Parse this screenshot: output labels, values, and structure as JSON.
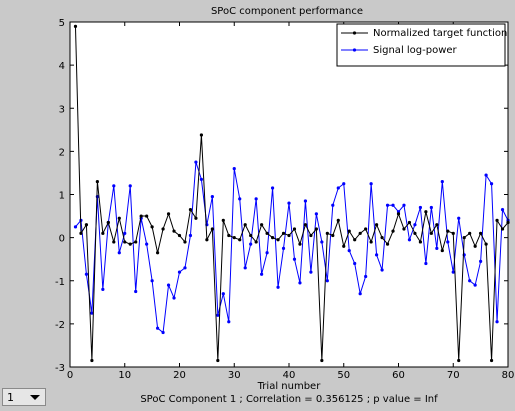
{
  "chart_data": {
    "type": "line",
    "title": "SPoC component performance",
    "xlabel": "Trial number",
    "caption": "SPoC Component 1 ; Correlation = 0.356125 ; p value = Inf",
    "xlim": [
      0,
      80
    ],
    "ylim": [
      -3,
      5
    ],
    "xticks": [
      0,
      10,
      20,
      30,
      40,
      50,
      60,
      70,
      80
    ],
    "yticks": [
      5,
      4,
      3,
      2,
      1,
      0,
      -1,
      -2,
      -3
    ],
    "legend_position": "top-right",
    "series": [
      {
        "name": "Normalized target function",
        "color": "#000000",
        "x": [
          1,
          2,
          3,
          4,
          5,
          6,
          7,
          8,
          9,
          10,
          11,
          12,
          13,
          14,
          15,
          16,
          17,
          18,
          19,
          20,
          21,
          22,
          23,
          24,
          25,
          26,
          27,
          28,
          29,
          30,
          31,
          32,
          33,
          34,
          35,
          36,
          37,
          38,
          39,
          40,
          41,
          42,
          43,
          44,
          45,
          46,
          47,
          48,
          49,
          50,
          51,
          52,
          53,
          54,
          55,
          56,
          57,
          58,
          59,
          60,
          61,
          62,
          63,
          64,
          65,
          66,
          67,
          68,
          69,
          70,
          71,
          72,
          73,
          74,
          75,
          76,
          77,
          78,
          79,
          80
        ],
        "values": [
          4.9,
          0.1,
          0.3,
          -2.85,
          1.3,
          0.1,
          0.35,
          -0.1,
          0.45,
          -0.1,
          -0.15,
          -0.1,
          0.5,
          0.5,
          0.25,
          -0.35,
          0.2,
          0.55,
          0.15,
          0.05,
          -0.1,
          0.65,
          0.45,
          2.38,
          -0.05,
          0.2,
          -2.85,
          0.4,
          0.05,
          0.0,
          -0.05,
          0.3,
          0.05,
          -0.1,
          0.3,
          0.1,
          0.0,
          -0.05,
          0.1,
          0.05,
          0.2,
          -0.15,
          0.3,
          0.05,
          0.2,
          -2.85,
          0.1,
          0.05,
          0.4,
          -0.2,
          0.15,
          -0.05,
          0.1,
          0.2,
          -0.1,
          0.3,
          0.0,
          -0.15,
          0.15,
          0.55,
          0.2,
          0.35,
          0.1,
          -0.1,
          0.6,
          0.1,
          0.3,
          -0.3,
          0.15,
          0.1,
          -2.85,
          0.0,
          0.1,
          -0.2,
          0.1,
          -0.15,
          -2.85,
          0.4,
          0.2,
          0.35
        ]
      },
      {
        "name": "Signal log-power",
        "color": "#0000ff",
        "x": [
          1,
          2,
          3,
          4,
          5,
          6,
          7,
          8,
          9,
          10,
          11,
          12,
          13,
          14,
          15,
          16,
          17,
          18,
          19,
          20,
          21,
          22,
          23,
          24,
          25,
          26,
          27,
          28,
          29,
          30,
          31,
          32,
          33,
          34,
          35,
          36,
          37,
          38,
          39,
          40,
          41,
          42,
          43,
          44,
          45,
          46,
          47,
          48,
          49,
          50,
          51,
          52,
          53,
          54,
          55,
          56,
          57,
          58,
          59,
          60,
          61,
          62,
          63,
          64,
          65,
          66,
          67,
          68,
          69,
          70,
          71,
          72,
          73,
          74,
          75,
          76,
          77,
          78,
          79,
          80
        ],
        "values": [
          0.25,
          0.4,
          -0.85,
          -1.75,
          0.95,
          -1.2,
          0.35,
          1.2,
          -0.35,
          0.1,
          1.2,
          -1.25,
          0.45,
          -0.15,
          -1.0,
          -2.1,
          -2.2,
          -1.1,
          -1.4,
          -0.8,
          -0.7,
          0.05,
          1.75,
          1.35,
          0.3,
          0.95,
          -1.8,
          -1.3,
          -1.95,
          1.6,
          0.9,
          -0.7,
          -0.15,
          0.9,
          -0.85,
          -0.35,
          1.15,
          -1.15,
          -0.25,
          0.8,
          -0.5,
          -1.05,
          0.85,
          -0.8,
          0.55,
          -0.1,
          -1.0,
          0.75,
          1.15,
          1.25,
          -0.3,
          -0.6,
          -1.3,
          -0.9,
          1.25,
          -0.4,
          -0.75,
          0.75,
          0.75,
          0.6,
          0.75,
          -0.05,
          0.3,
          0.7,
          -0.6,
          0.7,
          -0.25,
          1.3,
          -0.1,
          -0.8,
          0.45,
          -0.4,
          -1.0,
          -1.1,
          -0.55,
          1.45,
          1.25,
          -1.95,
          0.65,
          0.4
        ]
      }
    ]
  },
  "popup": {
    "selected": "1"
  }
}
